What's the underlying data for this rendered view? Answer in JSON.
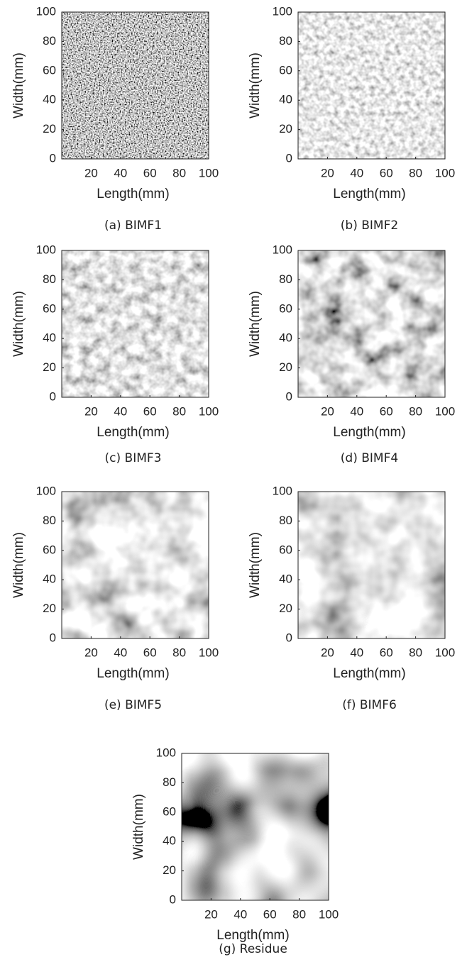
{
  "chart_data": [
    {
      "type": "heatmap",
      "caption": "(a) BIMF1",
      "xlabel": "Length(mm)",
      "ylabel": "Width(mm)",
      "xlim": [
        0,
        100
      ],
      "ylim": [
        0,
        100
      ],
      "xticks": [
        20,
        40,
        60,
        80,
        100
      ],
      "yticks": [
        0,
        20,
        40,
        60,
        80,
        100
      ]
    },
    {
      "type": "heatmap",
      "caption": "(b) BIMF2",
      "xlabel": "Length(mm)",
      "ylabel": "Width(mm)",
      "xlim": [
        0,
        100
      ],
      "ylim": [
        0,
        100
      ],
      "xticks": [
        20,
        40,
        60,
        80,
        100
      ],
      "yticks": [
        0,
        20,
        40,
        60,
        80,
        100
      ]
    },
    {
      "type": "heatmap",
      "caption": "(c) BIMF3",
      "xlabel": "Length(mm)",
      "ylabel": "Width(mm)",
      "xlim": [
        0,
        100
      ],
      "ylim": [
        0,
        100
      ],
      "xticks": [
        20,
        40,
        60,
        80,
        100
      ],
      "yticks": [
        0,
        20,
        40,
        60,
        80,
        100
      ]
    },
    {
      "type": "heatmap",
      "caption": "(d) BIMF4",
      "xlabel": "Length(mm)",
      "ylabel": "Width(mm)",
      "xlim": [
        0,
        100
      ],
      "ylim": [
        0,
        100
      ],
      "xticks": [
        20,
        40,
        60,
        80,
        100
      ],
      "yticks": [
        0,
        20,
        40,
        60,
        80,
        100
      ]
    },
    {
      "type": "heatmap",
      "caption": "(e) BIMF5",
      "xlabel": "Length(mm)",
      "ylabel": "Width(mm)",
      "xlim": [
        0,
        100
      ],
      "ylim": [
        0,
        100
      ],
      "xticks": [
        20,
        40,
        60,
        80,
        100
      ],
      "yticks": [
        0,
        20,
        40,
        60,
        80,
        100
      ]
    },
    {
      "type": "heatmap",
      "caption": "(f) BIMF6",
      "xlabel": "Length(mm)",
      "ylabel": "Width(mm)",
      "xlim": [
        0,
        100
      ],
      "ylim": [
        0,
        100
      ],
      "xticks": [
        20,
        40,
        60,
        80,
        100
      ],
      "yticks": [
        0,
        20,
        40,
        60,
        80,
        100
      ]
    },
    {
      "type": "heatmap",
      "caption": "(g) Residue",
      "xlabel": "Length(mm)",
      "ylabel": "Width(mm)",
      "xlim": [
        0,
        100
      ],
      "ylim": [
        0,
        100
      ],
      "xticks": [
        20,
        40,
        60,
        80,
        100
      ],
      "yticks": [
        0,
        20,
        40,
        60,
        80,
        100
      ]
    }
  ]
}
